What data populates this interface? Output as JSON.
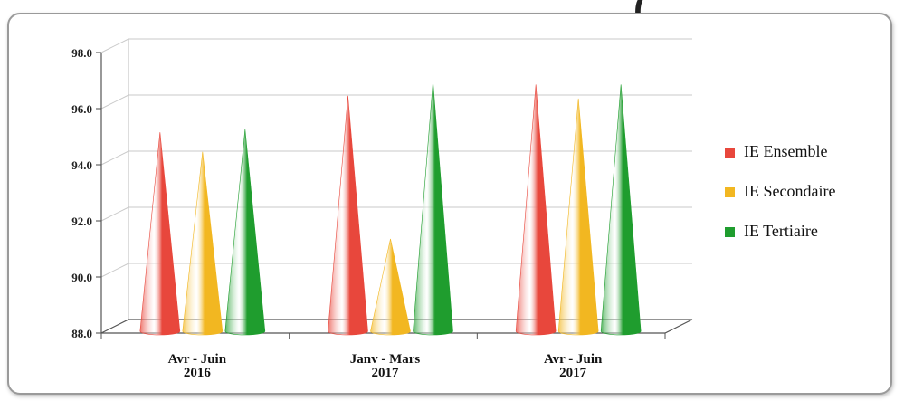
{
  "header_fragment": "(",
  "chart_data": {
    "type": "bar",
    "shape": "cone",
    "title": "",
    "xlabel": "",
    "ylabel": "",
    "ylim": [
      88.0,
      98.0
    ],
    "yticks": [
      "88.0",
      "90.0",
      "92.0",
      "94.0",
      "96.0",
      "98.0"
    ],
    "categories": [
      [
        "Avr - Juin",
        "2016"
      ],
      [
        "Janv - Mars",
        "2017"
      ],
      [
        "Avr - Juin",
        "2017"
      ]
    ],
    "series": [
      {
        "name": "IE Ensemble",
        "color": "#e8473c",
        "values": [
          94.9,
          96.2,
          96.6
        ]
      },
      {
        "name": "IE Secondaire",
        "color": "#f2b721",
        "values": [
          94.2,
          91.1,
          96.1
        ]
      },
      {
        "name": "IE Tertiaire",
        "color": "#1f9d2e",
        "values": [
          95.0,
          96.7,
          96.6
        ]
      }
    ],
    "legend_position": "right",
    "grid": true
  }
}
